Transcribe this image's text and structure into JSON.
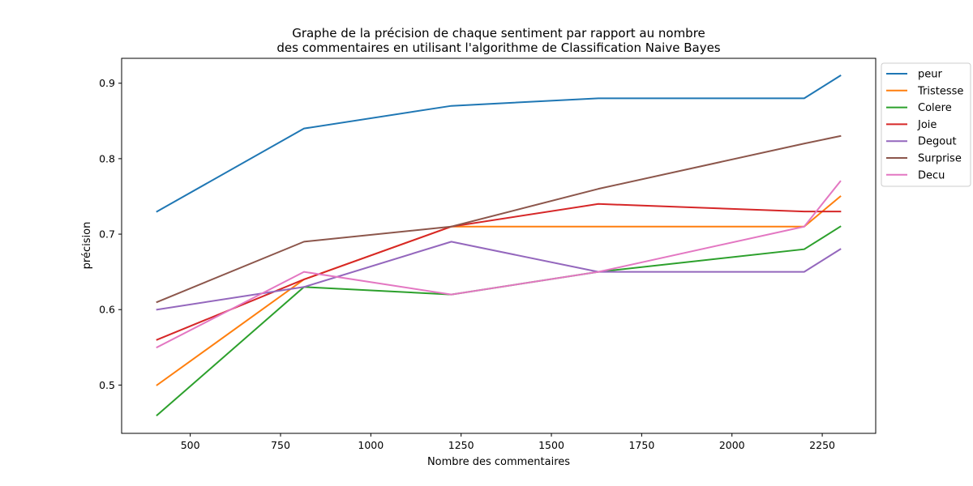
{
  "chart_data": {
    "type": "line",
    "title_lines": [
      "Graphe de la précision de chaque sentiment par rapport au nombre",
      "des commentaires en utilisant l'algorithme de Classification Naive Bayes"
    ],
    "xlabel": "Nombre des commentaires",
    "ylabel": "précision",
    "x": [
      408,
      815,
      1223,
      1630,
      2200,
      2300
    ],
    "xlim": [
      310,
      2398
    ],
    "ylim": [
      0.436,
      0.933
    ],
    "x_ticks": [
      500,
      750,
      1000,
      1250,
      1500,
      1750,
      2000,
      2250
    ],
    "y_ticks": [
      0.5,
      0.6,
      0.7,
      0.8,
      0.9
    ],
    "grid": false,
    "legend_position": "outside-right-top",
    "series": [
      {
        "name": "peur",
        "color": "#1f77b4",
        "values": [
          0.73,
          0.84,
          0.87,
          0.88,
          0.88,
          0.91
        ]
      },
      {
        "name": "Tristesse",
        "color": "#ff7f0e",
        "values": [
          0.5,
          0.64,
          0.71,
          0.71,
          0.71,
          0.75
        ]
      },
      {
        "name": "Colere",
        "color": "#2ca02c",
        "values": [
          0.46,
          0.63,
          0.62,
          0.65,
          0.68,
          0.71
        ]
      },
      {
        "name": "Joie",
        "color": "#d62728",
        "values": [
          0.56,
          0.64,
          0.71,
          0.74,
          0.73,
          0.73
        ]
      },
      {
        "name": "Degout",
        "color": "#9467bd",
        "values": [
          0.6,
          0.63,
          0.69,
          0.65,
          0.65,
          0.68
        ]
      },
      {
        "name": "Surprise",
        "color": "#8c564b",
        "values": [
          0.61,
          0.69,
          0.71,
          0.76,
          0.82,
          0.83
        ]
      },
      {
        "name": "Decu",
        "color": "#e377c2",
        "values": [
          0.55,
          0.65,
          0.62,
          0.65,
          0.71,
          0.77
        ]
      }
    ]
  }
}
